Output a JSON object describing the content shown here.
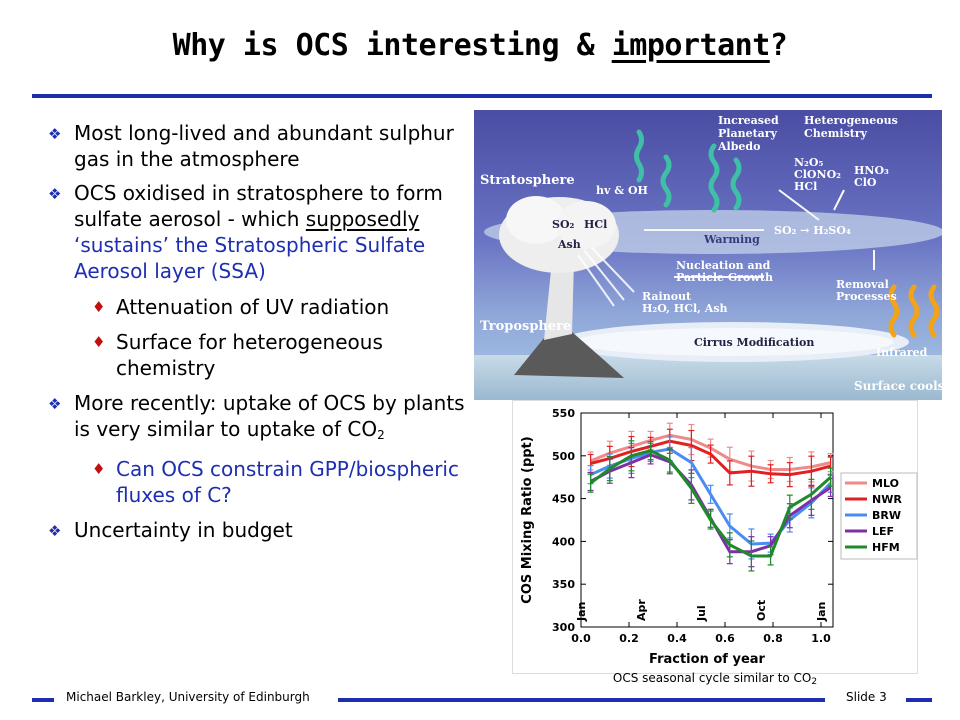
{
  "slide": {
    "title_pre": "Why is OCS interesting & ",
    "title_underlined": "important",
    "title_post": "?",
    "footer_author": "Michael Barkley, University of Edinburgh",
    "footer_slide": "Slide 3",
    "caption_pre": "OCS seasonal cycle similar to CO",
    "caption_sub": "2",
    "colors": {
      "accent": "#1d2fb0",
      "diamond": "#c01010",
      "link_blue": "#1d2fb0"
    }
  },
  "bullets": {
    "b1": "Most long-lived and abundant sulphur gas in the atmosphere",
    "b2_pre": "OCS oxidised in stratosphere to form sulfate aerosol - which ",
    "b2_underlined": "supposedly",
    "b2_blue": " ‘sustains’ the Stratospheric Sulfate Aerosol layer (SSA)",
    "b2_sub1": "Attenuation of UV radiation",
    "b2_sub2": "Surface for heterogeneous chemistry",
    "b3_pre": "More recently: uptake of OCS by plants is very similar to uptake of CO",
    "b3_sub": "2",
    "b3_sub1": "Can OCS constrain GPP/biospheric fluxes of C?",
    "b4": "Uncertainty in budget"
  },
  "diagram": {
    "stratosphere": "Stratosphere",
    "troposphere": "Troposphere",
    "planetary_albedo": [
      "Increased",
      "Planetary",
      "Albedo"
    ],
    "het_chem": [
      "Heterogeneous",
      "Chemistry"
    ],
    "n2o5": "N₂O₅",
    "clono2": "ClONO₂",
    "hcl_right": "HCl",
    "hno3": "HNO₃",
    "clo": "ClO",
    "hv_oh": "hv & OH",
    "so2": "SO₂",
    "hcl": "HCl",
    "ash": "Ash",
    "so2_h2so4": "SO₂ → H₂SO₄",
    "warming": "Warming",
    "nucleation": [
      "Nucleation and",
      "Particle Growth"
    ],
    "rainout": [
      "Rainout",
      "H₂O, HCl, Ash"
    ],
    "removal": [
      "Removal",
      "Processes"
    ],
    "cirrus": "Cirrus Modification",
    "infrared": "Infrared",
    "surface_cools": "Surface cools"
  },
  "chart_data": {
    "type": "line",
    "ylabel": "COS Mixing Ratio  (ppt)",
    "xlabel": "Fraction of year",
    "xlim": [
      0.0,
      1.05
    ],
    "ylim": [
      300,
      550
    ],
    "xticks": [
      "0.0",
      "0.2",
      "0.4",
      "0.6",
      "0.8",
      "1.0"
    ],
    "yticks": [
      "300",
      "350",
      "400",
      "450",
      "500",
      "550"
    ],
    "month_labels": [
      "Jan",
      "Apr",
      "Jul",
      "Oct",
      "Jan"
    ],
    "legend_placement": "right",
    "x": [
      0.04,
      0.12,
      0.21,
      0.29,
      0.37,
      0.46,
      0.54,
      0.62,
      0.71,
      0.79,
      0.87,
      0.96,
      1.04
    ],
    "series": [
      {
        "name": "MLO",
        "color": "#f08a8a",
        "values": [
          494,
          503,
          511,
          518,
          524,
          519,
          509,
          496,
          488,
          484,
          484,
          487,
          492
        ]
      },
      {
        "name": "NWR",
        "color": "#e22020",
        "values": [
          491,
          497,
          505,
          511,
          517,
          512,
          502,
          480,
          482,
          479,
          478,
          482,
          488
        ]
      },
      {
        "name": "BRW",
        "color": "#4a8cf0",
        "values": [
          478,
          488,
          497,
          504,
          508,
          492,
          455,
          418,
          397,
          398,
          425,
          445,
          468
        ]
      },
      {
        "name": "LEF",
        "color": "#7b2fa8",
        "values": [
          470,
          482,
          492,
          501,
          493,
          466,
          427,
          388,
          388,
          395,
          430,
          448,
          463
        ]
      },
      {
        "name": "HFM",
        "color": "#1f8a2a",
        "values": [
          468,
          485,
          500,
          506,
          495,
          462,
          425,
          396,
          383,
          383,
          440,
          455,
          475
        ]
      }
    ]
  }
}
